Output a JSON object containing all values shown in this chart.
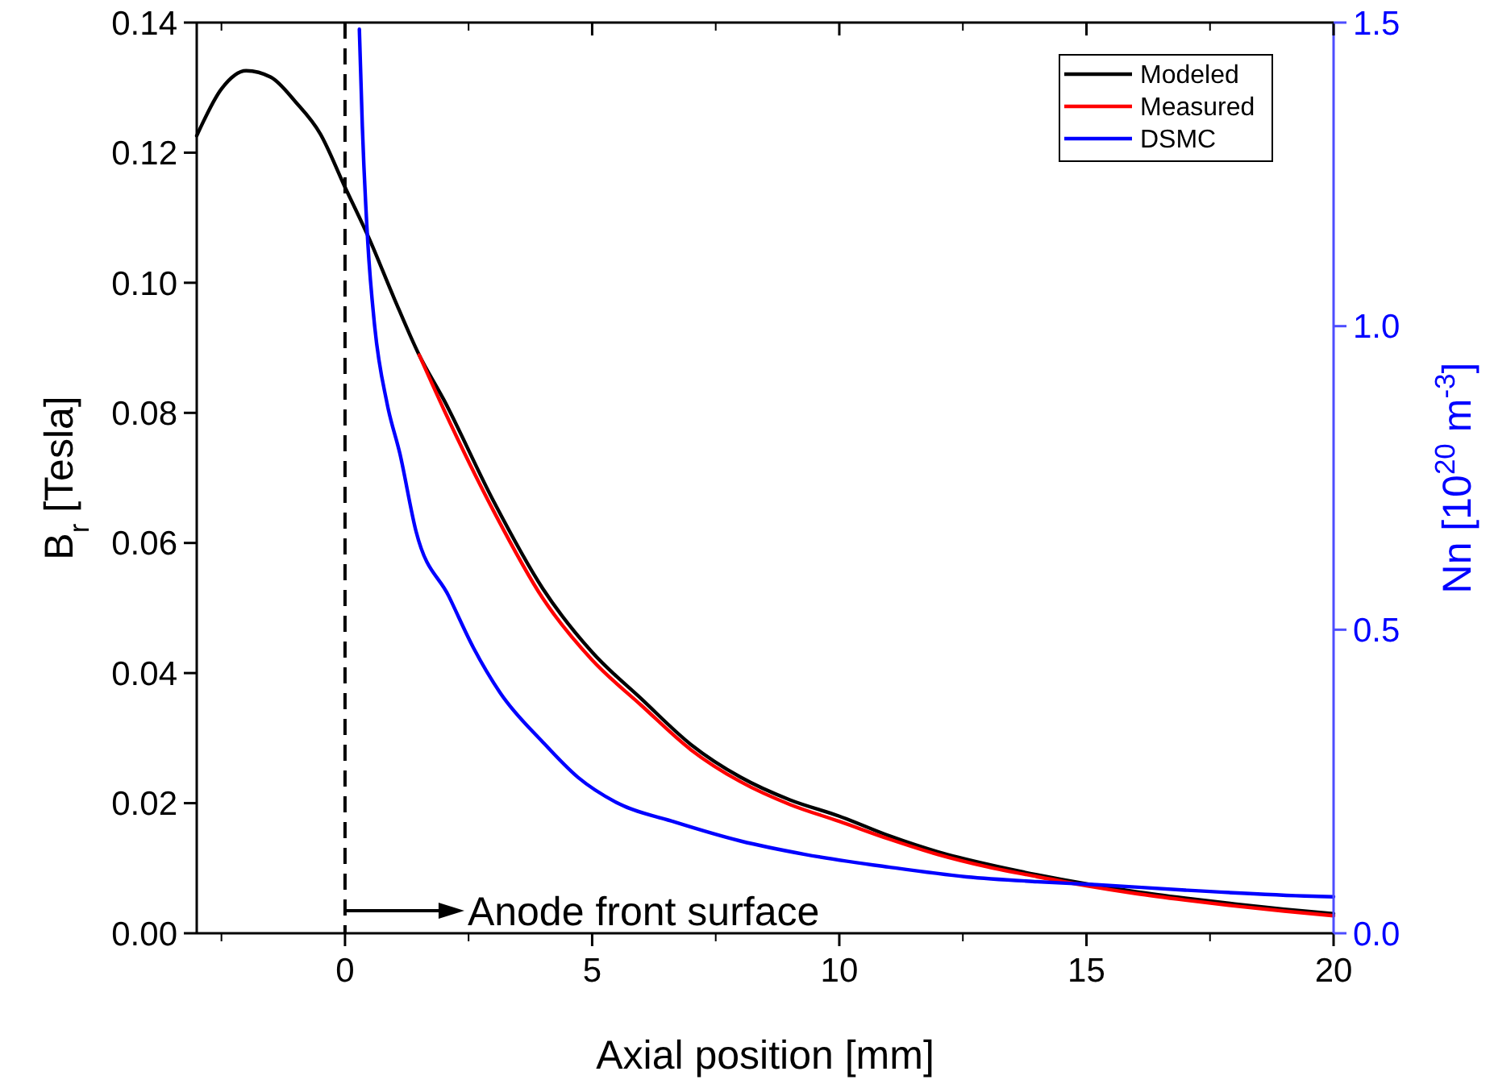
{
  "chart_data": {
    "type": "line",
    "xlabel": "Axial position [mm]",
    "ylabel": "B$_{r}$ [Tesla]",
    "y2label": "Nn [10$^{20}$ m$^{-3}$]",
    "xlim": [
      -3,
      20
    ],
    "xticks": [
      0,
      5,
      10,
      15,
      20
    ],
    "ylim": [
      0,
      0.14
    ],
    "yticks": [
      {
        "value": 0,
        "label": "0.00"
      },
      {
        "value": 0.02,
        "label": "0.02"
      },
      {
        "value": 0.04,
        "label": "0.04"
      },
      {
        "value": 0.06,
        "label": "0.06"
      },
      {
        "value": 0.08,
        "label": "0.08"
      },
      {
        "value": 0.1,
        "label": "0.10"
      },
      {
        "value": 0.12,
        "label": "0.12"
      },
      {
        "value": 0.14,
        "label": "0.14"
      }
    ],
    "y2lim": [
      0,
      1.5
    ],
    "y2ticks": [
      {
        "value": 0,
        "label": "0.0"
      },
      {
        "value": 0.5,
        "label": "0.5"
      },
      {
        "value": 1,
        "label": "1.0"
      },
      {
        "value": 1.5,
        "label": "1.5"
      }
    ],
    "grid": false,
    "legend": "top right",
    "line_style": "solid",
    "marker": "none",
    "ref_lines": [
      {
        "axis": "x",
        "value": 0,
        "color": "#000000",
        "line_style": "dashed"
      }
    ],
    "annotations": [
      "Anode front surface"
    ],
    "series": [
      {
        "name": "Modeled",
        "color": "#000000",
        "x": [
          -3,
          -2.5,
          -2,
          -1.5,
          -1,
          -0.5,
          0,
          0.5,
          1,
          1.5,
          2,
          3,
          4,
          5,
          6,
          7,
          8,
          9,
          10,
          11,
          12,
          13,
          14,
          15,
          16,
          17,
          18,
          19,
          20
        ],
        "values": [
          0.1226,
          0.1298,
          0.1326,
          0.1316,
          0.1278,
          0.1229,
          0.1147,
          0.1066,
          0.0975,
          0.0889,
          0.082,
          0.0665,
          0.053,
          0.0432,
          0.036,
          0.029,
          0.024,
          0.0205,
          0.018,
          0.015,
          0.0125,
          0.0106,
          0.009,
          0.0076,
          0.0064,
          0.0054,
          0.0045,
          0.0037,
          0.003
        ]
      },
      {
        "name": "Measured",
        "color": "#ff0000",
        "x": [
          1.5,
          2,
          3,
          4,
          5,
          6,
          7,
          8,
          9,
          10,
          11,
          12,
          13,
          14,
          15,
          16,
          17,
          18,
          19,
          20
        ],
        "values": [
          0.0889,
          0.0805,
          0.065,
          0.0515,
          0.042,
          0.035,
          0.0282,
          0.0233,
          0.0198,
          0.0172,
          0.0145,
          0.0121,
          0.0102,
          0.0087,
          0.0073,
          0.0061,
          0.0051,
          0.0042,
          0.0034,
          0.0027
        ]
      },
      {
        "name": "DSMC",
        "color": "#0000ff",
        "axis": "y2",
        "x": [
          0.29,
          0.35,
          0.46,
          0.6,
          0.85,
          1.11,
          1.44,
          2.1,
          2.6,
          3.14,
          4,
          4.71,
          5.5,
          6.68,
          8,
          9.3,
          11,
          12.57,
          14,
          15.2,
          17,
          19.57,
          20
        ],
        "values": [
          1.489,
          1.33,
          1.139,
          1.0,
          0.873,
          0.79,
          0.661,
          0.555,
          0.47,
          0.396,
          0.315,
          0.257,
          0.215,
          0.183,
          0.152,
          0.13,
          0.109,
          0.093,
          0.085,
          0.08,
          0.071,
          0.061,
          0.06
        ]
      }
    ]
  }
}
